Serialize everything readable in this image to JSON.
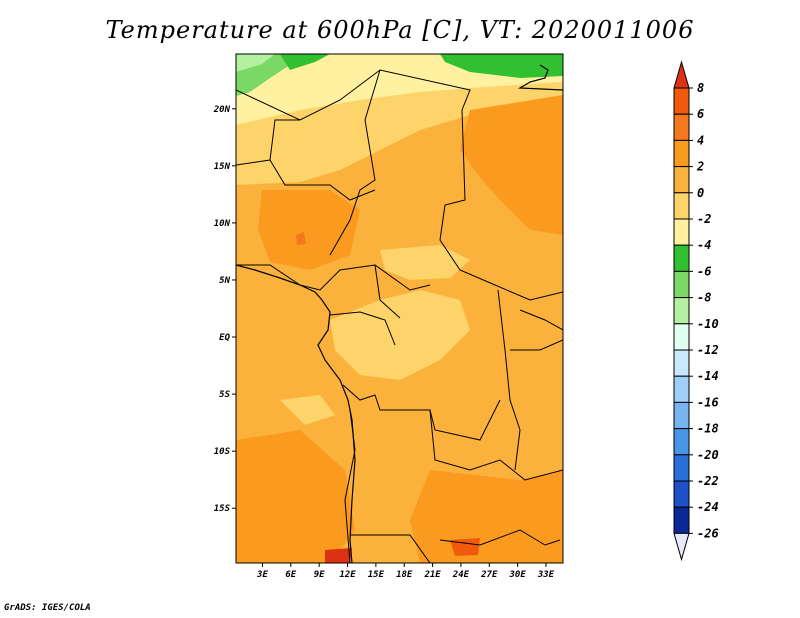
{
  "title": "Temperature at 600hPa [C], VT: 2020011006",
  "credit": "GrADS: IGES/COLA",
  "map": {
    "lat_labels": [
      "20N",
      "15N",
      "10N",
      "5N",
      "EQ",
      "5S",
      "10S",
      "15S"
    ],
    "lat_values": [
      20,
      15,
      10,
      5,
      0,
      -5,
      -10,
      -15
    ],
    "lon_labels": [
      "3E",
      "6E",
      "9E",
      "12E",
      "15E",
      "18E",
      "21E",
      "24E",
      "27E",
      "30E",
      "33E"
    ],
    "lon_values": [
      3,
      6,
      9,
      12,
      15,
      18,
      21,
      24,
      27,
      30,
      33
    ],
    "lon_range": [
      0.2,
      34.8
    ],
    "lat_range": [
      -19.8,
      24.8
    ]
  },
  "colorbar": {
    "labels": [
      "8",
      "6",
      "4",
      "2",
      "0",
      "-2",
      "-4",
      "-6",
      "-8",
      "-10",
      "-12",
      "-14",
      "-16",
      "-18",
      "-20",
      "-22",
      "-24",
      "-26"
    ],
    "colors": [
      "#dc3214",
      "#f05a0a",
      "#f4781e",
      "#fa9a1e",
      "#fbb23c",
      "#fdd46a",
      "#fff1a0",
      "#30c030",
      "#7ad864",
      "#b4f0a0",
      "#e0fff0",
      "#c8e8ff",
      "#a0d0fa",
      "#78b4f0",
      "#4896e6",
      "#2a6ed8",
      "#1e50c8",
      "#0a2896",
      "#081468"
    ]
  }
}
